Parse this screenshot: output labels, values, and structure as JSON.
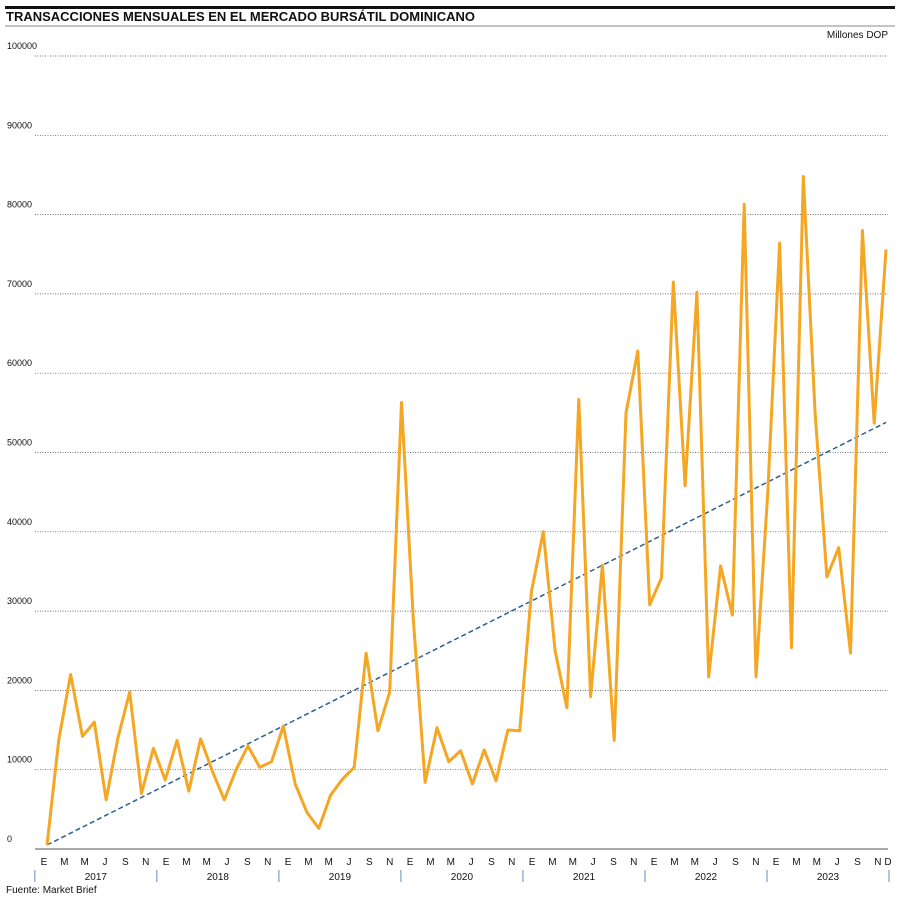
{
  "chart_data": {
    "type": "line",
    "title": "TRANSACCIONES MENSUALES EN EL MERCADO BURSÁTIL DOMINICANO",
    "unit_label": "Millones DOP",
    "source": "Fuente: Market Brief",
    "x_month_labels": [
      "E",
      null,
      "M",
      null,
      "M",
      null,
      "J",
      null,
      "S",
      null,
      "N",
      null,
      "E",
      null,
      "M",
      null,
      "M",
      null,
      "J",
      null,
      "S",
      null,
      "N",
      null,
      "E",
      null,
      "M",
      null,
      "M",
      null,
      "J",
      null,
      "S",
      null,
      "N",
      null,
      "E",
      null,
      "M",
      null,
      "M",
      null,
      "J",
      null,
      "S",
      null,
      "N",
      null,
      "E",
      null,
      "M",
      null,
      "M",
      null,
      "J",
      null,
      "S",
      null,
      "N",
      null,
      "E",
      null,
      "M",
      null,
      "M",
      null,
      "J",
      null,
      "S",
      null,
      "N",
      null,
      "E",
      null,
      "M",
      null,
      "M",
      null,
      "J",
      null,
      "S",
      null,
      "N",
      "D"
    ],
    "years": [
      "2017",
      "2018",
      "2019",
      "2020",
      "2021",
      "2022",
      "2023"
    ],
    "series": [
      {
        "color": "#f5a623",
        "values": [
          500,
          13800,
          22000,
          14200,
          16000,
          6200,
          14000,
          19800,
          7000,
          12700,
          8700,
          13700,
          7300,
          13900,
          9800,
          6200,
          10000,
          13000,
          10300,
          11000,
          15500,
          8200,
          4600,
          2600,
          6800,
          8800,
          10300,
          24700,
          14900,
          19800,
          56300,
          29000,
          8400,
          15300,
          11000,
          12400,
          8200,
          12500,
          8600,
          15000,
          14900,
          32500,
          40000,
          25000,
          17800,
          56700,
          19200,
          35800,
          13700,
          55000,
          62800,
          30800,
          34200,
          71500,
          45800,
          70200,
          21700,
          35700,
          29500,
          81300,
          21700,
          45000,
          76400,
          25400,
          84800,
          55000,
          34300,
          38000,
          24700,
          78000,
          53700,
          75600
        ]
      },
      {
        "color": "#2b5f8e",
        "dashed": true,
        "values": [
          500,
          53800
        ]
      }
    ],
    "ylim": [
      0,
      100000
    ],
    "yticks": [
      0,
      10000,
      20000,
      30000,
      40000,
      50000,
      60000,
      70000,
      80000,
      90000,
      100000
    ],
    "grid": true
  }
}
